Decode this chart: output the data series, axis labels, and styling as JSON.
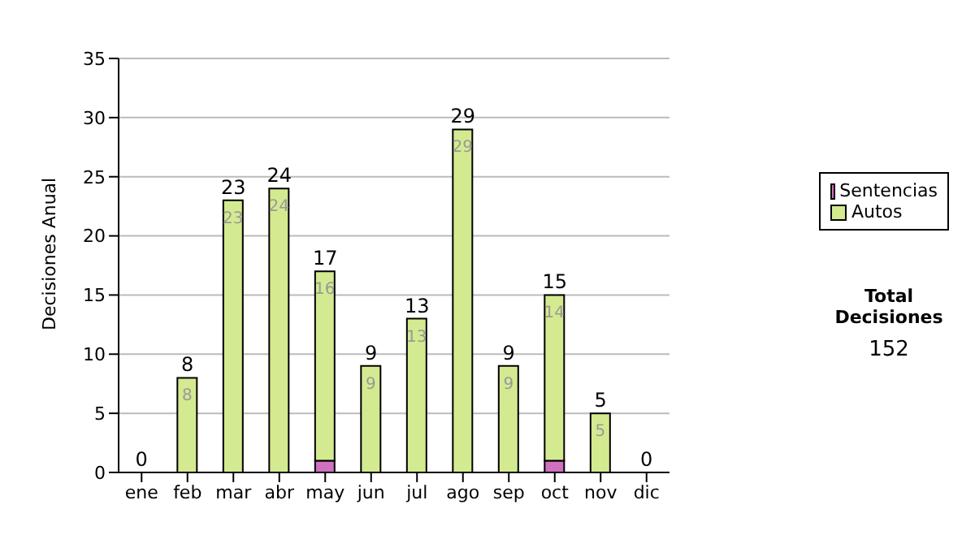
{
  "chart_data": {
    "type": "bar",
    "stacked": true,
    "ylabel": "Decisiones Anual",
    "categories": [
      "ene",
      "feb",
      "mar",
      "abr",
      "may",
      "jun",
      "jul",
      "ago",
      "sep",
      "oct",
      "nov",
      "dic"
    ],
    "series": [
      {
        "name": "Sentencias",
        "color": "#d070c0",
        "values": [
          0,
          0,
          0,
          0,
          1,
          0,
          0,
          0,
          0,
          1,
          0,
          0
        ]
      },
      {
        "name": "Autos",
        "color": "#d4ea90",
        "values": [
          0,
          8,
          23,
          24,
          16,
          9,
          13,
          29,
          9,
          14,
          5,
          0
        ],
        "value_labels": [
          null,
          "8",
          "23",
          "24",
          "16",
          "9",
          "13",
          "29",
          "9",
          "14",
          "5",
          null
        ]
      }
    ],
    "totals": [
      "0",
      "8",
      "23",
      "24",
      "17",
      "9",
      "13",
      "29",
      "9",
      "15",
      "5",
      "0"
    ],
    "ylim": [
      0,
      35
    ],
    "yticks": [
      0,
      5,
      10,
      15,
      20,
      25,
      30,
      35
    ],
    "grid": "y",
    "legend": "right",
    "annotations": [
      "Total Decisiones",
      "152"
    ]
  }
}
